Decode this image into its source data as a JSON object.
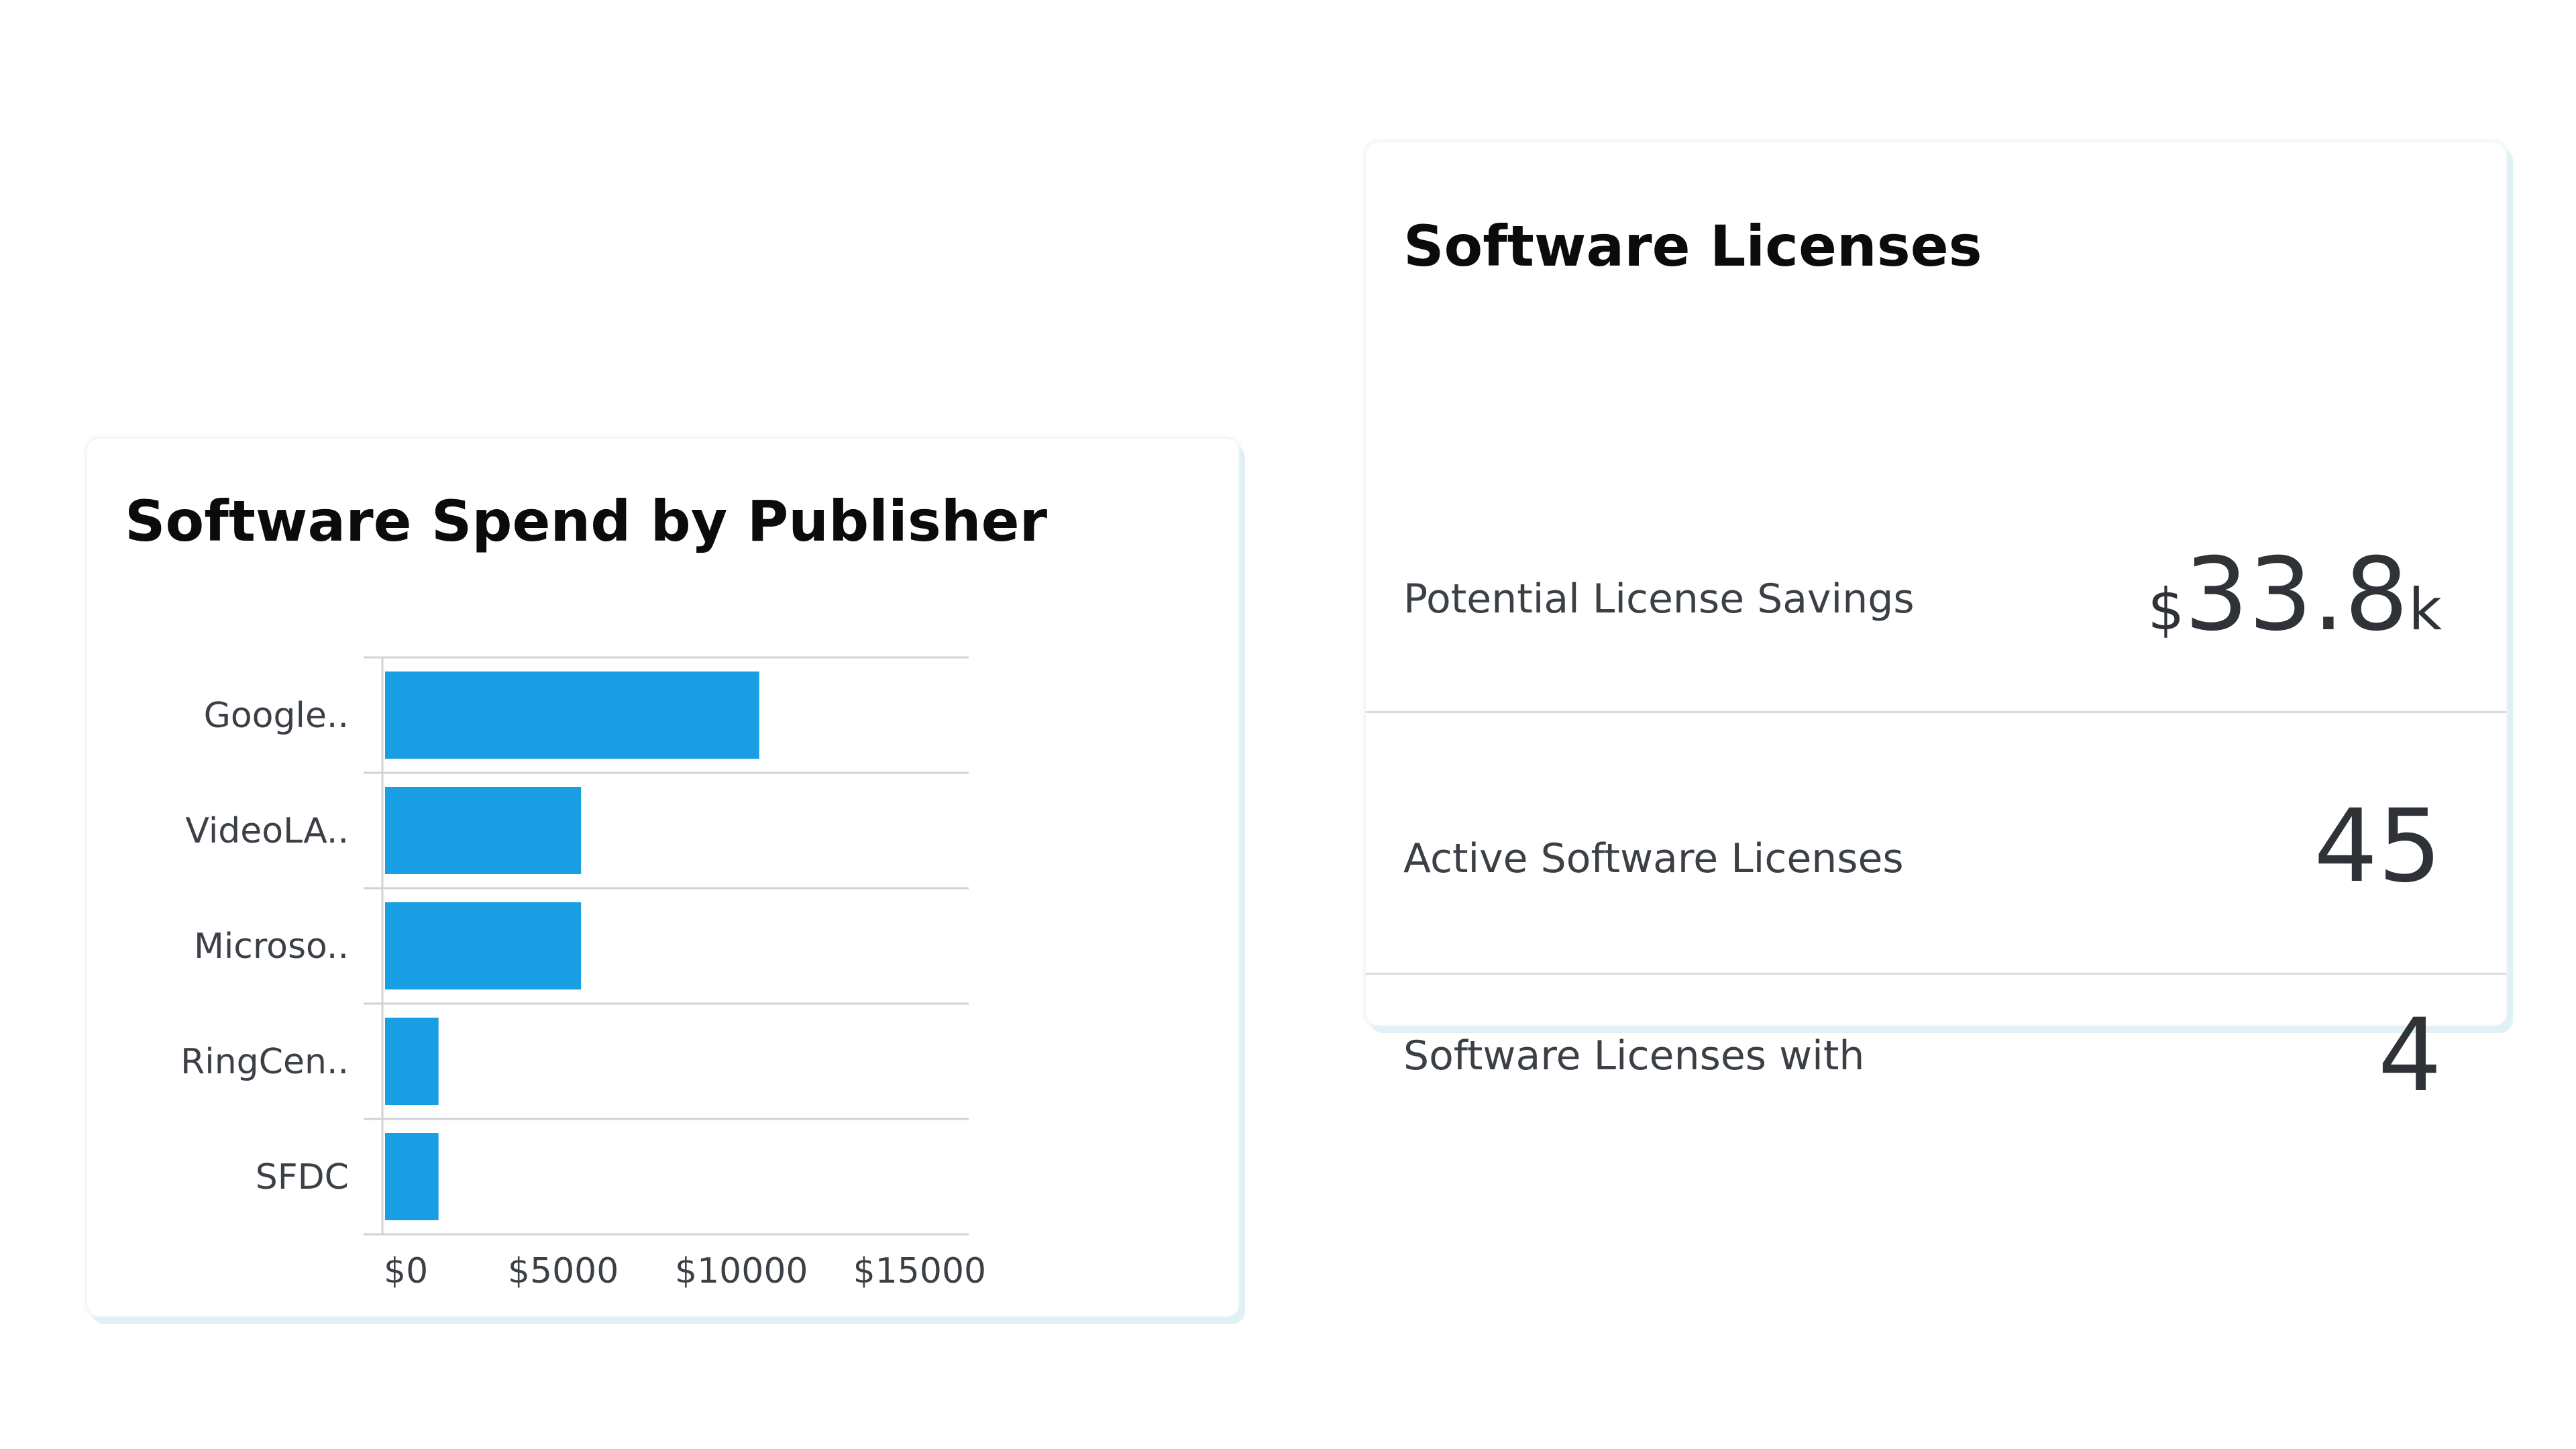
{
  "spend_card": {
    "title": "Software Spend by Publisher"
  },
  "chart_data": {
    "type": "bar",
    "orientation": "horizontal",
    "title": "Software Spend by Publisher",
    "categories": [
      "Google..",
      "VideoLA..",
      "Microso..",
      "RingCen..",
      "SFDC"
    ],
    "values": [
      10500,
      5500,
      5500,
      1500,
      1500
    ],
    "xlim": [
      0,
      16000
    ],
    "x_ticks": [
      0,
      5000,
      10000,
      15000
    ],
    "x_tick_labels": [
      "$0",
      "$5000",
      "$10000",
      "$15000"
    ],
    "bar_color": "#199ee3",
    "grid": true,
    "legend": "none"
  },
  "license_card": {
    "title": "Software Licenses",
    "stats": [
      {
        "label": "Potential License Savings",
        "prefix": "$",
        "value": "33.8",
        "suffix": "k"
      },
      {
        "label": "Active Software Licenses",
        "value": "45"
      },
      {
        "label": "Software Licenses with",
        "value": "4"
      }
    ]
  },
  "colors": {
    "accent": "#199ee3",
    "card_shadow": "#dff1f7",
    "divider": "#d9dcdf",
    "text_dark": "#0b0b0b",
    "text_muted": "#3b4046"
  }
}
